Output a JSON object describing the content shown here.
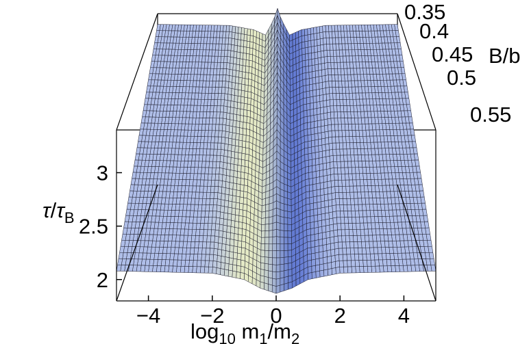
{
  "chart_data": {
    "type": "surface3d",
    "title": "",
    "xlabel": "log10 m1/m2",
    "ylabel": "B/b",
    "zlabel": "τ/τB",
    "x_ticks": [
      "−4",
      "−2",
      "0",
      "2",
      "4"
    ],
    "x_tick_values": [
      -4,
      -2,
      0,
      2,
      4
    ],
    "y_ticks": [
      "0.35",
      "0.4",
      "0.45",
      "0.5",
      "0.55"
    ],
    "y_tick_values": [
      0.35,
      0.4,
      0.45,
      0.5,
      0.55
    ],
    "z_ticks": [
      "2",
      "2.5",
      "3"
    ],
    "z_tick_values": [
      2,
      2.5,
      3
    ],
    "xlim": [
      -5,
      5
    ],
    "ylim": [
      0.35,
      0.55
    ],
    "zlim": [
      1.8,
      3.4
    ],
    "surface": {
      "plateau_value": 2.08,
      "at_y_0_55": {
        "x": [
          -5,
          -2,
          -1,
          -0.5,
          0,
          0.5,
          1,
          2,
          5
        ],
        "z": [
          2.08,
          2.06,
          2.0,
          1.92,
          1.87,
          1.92,
          2.0,
          2.06,
          2.08
        ]
      },
      "at_y_0_35": {
        "x": [
          -5,
          -2,
          -1,
          -0.5,
          -0.15,
          0,
          0.15,
          0.5,
          1,
          2,
          5
        ],
        "z": [
          3.3,
          3.29,
          3.25,
          3.2,
          3.35,
          3.45,
          3.35,
          3.2,
          3.25,
          3.29,
          3.3
        ]
      }
    }
  }
}
